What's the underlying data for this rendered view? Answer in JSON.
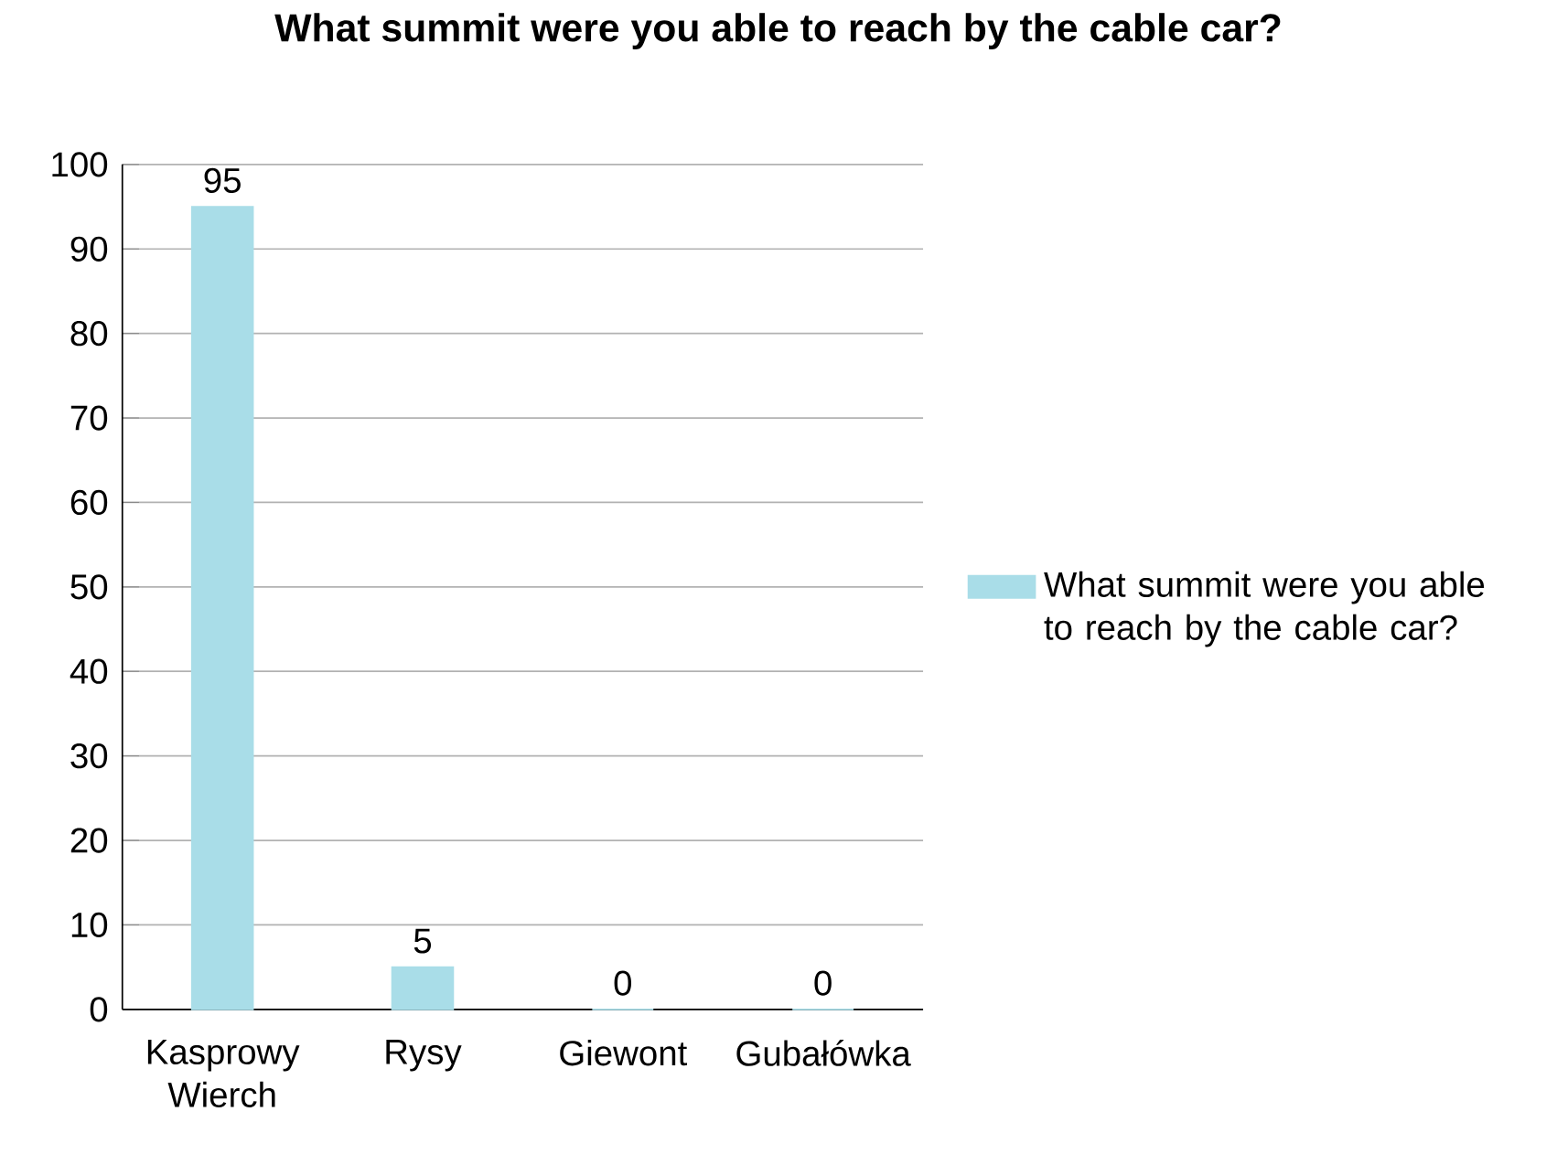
{
  "chart_data": {
    "type": "bar",
    "title": "What summit were you able to reach by the cable car?",
    "categories": [
      "Kasprowy Wierch",
      "Rysy",
      "Giewont",
      "Gubałówka"
    ],
    "series": [
      {
        "name": "What summit were you able to reach by the cable car?",
        "color": "#a9dde8",
        "values": [
          95,
          5,
          0,
          0
        ]
      }
    ],
    "ylim": [
      0,
      100
    ],
    "yticks": [
      0,
      10,
      20,
      30,
      40,
      50,
      60,
      70,
      80,
      90,
      100
    ],
    "grid": "y",
    "legend": "right",
    "data_labels": true
  }
}
